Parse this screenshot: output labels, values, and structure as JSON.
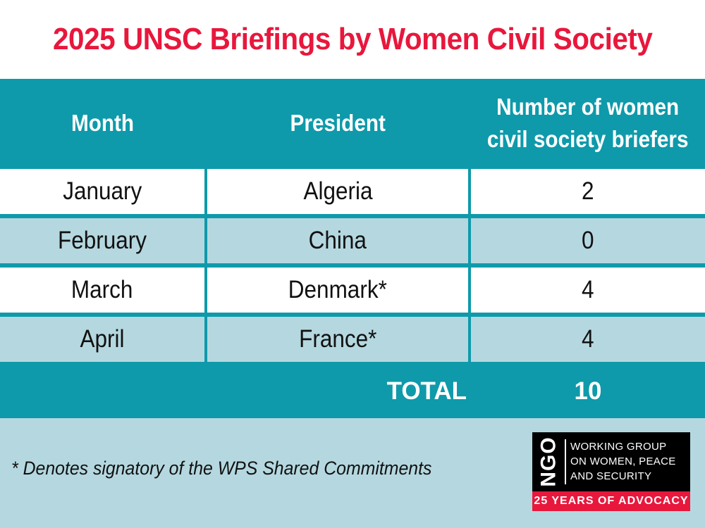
{
  "title": "2025 UNSC Briefings by Women Civil Society",
  "table": {
    "headers": [
      "Month",
      "President",
      "Number of women\ncivil society briefers"
    ],
    "rows": [
      {
        "month": "January",
        "president": "Algeria",
        "count": "2"
      },
      {
        "month": "February",
        "president": "China",
        "count": "0"
      },
      {
        "month": "March",
        "president": "Denmark*",
        "count": "4"
      },
      {
        "month": "April",
        "president": "France*",
        "count": "4"
      }
    ],
    "total_label": "TOTAL",
    "total_value": "10"
  },
  "footnote": "* Denotes signatory of the WPS Shared Commitments",
  "logo": {
    "abbr": "NGO",
    "lines": [
      "WORKING GROUP",
      "ON WOMEN, PEACE",
      "AND SECURITY"
    ],
    "tagline": "25 YEARS OF ADVOCACY"
  },
  "colors": {
    "accent_red": "#e8173c",
    "teal": "#0e9aaa",
    "light_blue": "#b5d8e0"
  }
}
